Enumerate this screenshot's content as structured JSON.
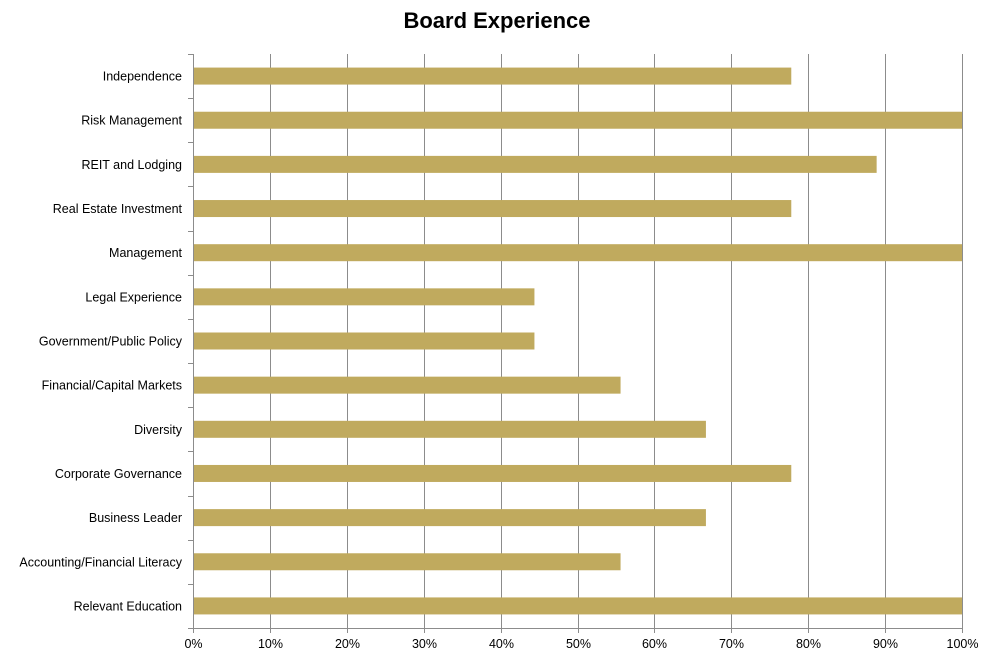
{
  "chart_data": {
    "type": "bar",
    "orientation": "horizontal",
    "title": "Board Experience",
    "categories": [
      "Independence",
      "Risk Management",
      "REIT and Lodging",
      "Real Estate Investment",
      "Management",
      "Legal Experience",
      "Government/Public Policy",
      "Financial/Capital Markets",
      "Diversity",
      "Corporate Governance",
      "Business Leader",
      "Accounting/Financial Literacy",
      "Relevant Education"
    ],
    "values": [
      77.8,
      100,
      88.9,
      77.8,
      100,
      44.4,
      44.4,
      55.6,
      66.7,
      77.8,
      66.7,
      55.6,
      100
    ],
    "xlim": [
      0,
      100
    ],
    "xticks": [
      "0%",
      "10%",
      "20%",
      "30%",
      "40%",
      "50%",
      "60%",
      "70%",
      "80%",
      "90%",
      "100%"
    ],
    "bar_color": "#c0aa5e",
    "grid": "vertical",
    "legend": "none"
  }
}
